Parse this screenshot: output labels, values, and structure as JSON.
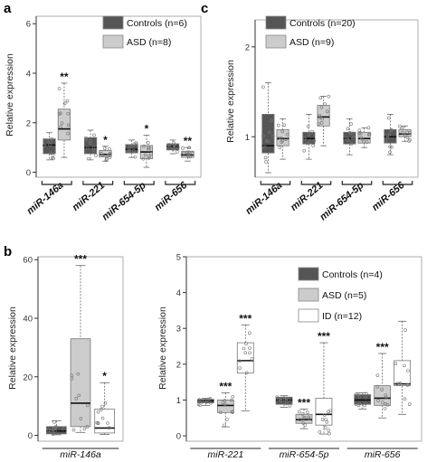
{
  "colors": {
    "controls": "#555555",
    "asd": "#cccccc",
    "id": "#ffffff",
    "points": "#777777",
    "axis": "#333333"
  },
  "chart_data": [
    {
      "panel_label": "a",
      "type": "box",
      "ylabel": "Relative expression",
      "ylim": [
        -0.2,
        6.3
      ],
      "yticks": [
        0,
        2,
        4,
        6
      ],
      "categories": [
        "miR-146a",
        "miR-221",
        "miR-654-5p",
        "miR-656"
      ],
      "legend": [
        {
          "group": "controls",
          "label": "Controls (n=6)"
        },
        {
          "group": "asd",
          "label": "ASD (n=8)"
        }
      ],
      "series": [
        {
          "group": "controls",
          "boxes": [
            {
              "min": 0.5,
              "q1": 0.75,
              "median": 1.1,
              "q3": 1.35,
              "max": 1.6
            },
            {
              "min": 0.5,
              "q1": 0.75,
              "median": 1.0,
              "q3": 1.4,
              "max": 1.7
            },
            {
              "min": 0.6,
              "q1": 0.78,
              "median": 0.92,
              "q3": 1.12,
              "max": 1.3
            },
            {
              "min": 0.75,
              "q1": 0.9,
              "median": 1.05,
              "q3": 1.15,
              "max": 1.3
            }
          ]
        },
        {
          "group": "asd",
          "boxes": [
            {
              "min": 0.6,
              "q1": 1.3,
              "median": 1.75,
              "q3": 2.55,
              "max": 3.6
            },
            {
              "min": 0.45,
              "q1": 0.62,
              "median": 0.72,
              "q3": 0.88,
              "max": 1.05
            },
            {
              "min": 0.2,
              "q1": 0.55,
              "median": 0.82,
              "q3": 1.08,
              "max": 1.5
            },
            {
              "min": 0.45,
              "q1": 0.6,
              "median": 0.7,
              "q3": 0.85,
              "max": 1.0
            }
          ]
        }
      ],
      "significance": [
        "**",
        "*",
        "*",
        "**"
      ]
    },
    {
      "panel_label": "c",
      "type": "box",
      "ylabel": "Relative expression",
      "ylim": [
        0.55,
        2.3
      ],
      "yticks": [
        1,
        2
      ],
      "categories": [
        "miR-146a",
        "miR-221",
        "miR-654-5p",
        "miR-656"
      ],
      "legend": [
        {
          "group": "controls",
          "label": "Controls (n=20)"
        },
        {
          "group": "asd",
          "label": "ASD (n=9)"
        }
      ],
      "series": [
        {
          "group": "controls",
          "boxes": [
            {
              "min": 0.6,
              "q1": 0.82,
              "median": 0.9,
              "q3": 1.25,
              "max": 1.6
            },
            {
              "min": 0.75,
              "q1": 0.92,
              "median": 0.98,
              "q3": 1.05,
              "max": 1.25
            },
            {
              "min": 0.8,
              "q1": 0.92,
              "median": 0.98,
              "q3": 1.05,
              "max": 1.2
            },
            {
              "min": 0.8,
              "q1": 0.93,
              "median": 1.0,
              "q3": 1.08,
              "max": 1.25
            }
          ]
        },
        {
          "group": "asd",
          "boxes": [
            {
              "min": 0.75,
              "q1": 0.9,
              "median": 0.98,
              "q3": 1.08,
              "max": 1.2
            },
            {
              "min": 0.9,
              "q1": 1.12,
              "median": 1.22,
              "q3": 1.35,
              "max": 1.45
            },
            {
              "min": 0.88,
              "q1": 0.93,
              "median": 0.98,
              "q3": 1.05,
              "max": 1.1
            },
            {
              "min": 0.95,
              "q1": 1.0,
              "median": 1.03,
              "q3": 1.08,
              "max": 1.12
            }
          ]
        }
      ],
      "significance": [
        "",
        "",
        "",
        ""
      ]
    },
    {
      "panel_label": "b",
      "type": "box",
      "ylabel": "Relative expression",
      "ylim": [
        -2,
        61
      ],
      "yticks": [
        0,
        20,
        40,
        60
      ],
      "categories": [
        "miR-146a"
      ],
      "series": [
        {
          "group": "controls",
          "boxes": [
            {
              "min": 0.2,
              "q1": 0.5,
              "median": 1.5,
              "q3": 3.0,
              "max": 5.0
            }
          ]
        },
        {
          "group": "asd",
          "boxes": [
            {
              "min": 1.0,
              "q1": 3.0,
              "median": 11.0,
              "q3": 33.0,
              "max": 58.0
            }
          ]
        },
        {
          "group": "id",
          "boxes": [
            {
              "min": 0.3,
              "q1": 0.8,
              "median": 2.5,
              "q3": 9.0,
              "max": 18.0
            }
          ]
        }
      ],
      "significance": [
        "***",
        "*"
      ]
    },
    {
      "type": "box",
      "ylabel": "Relative expression",
      "ylim": [
        -0.15,
        5.0
      ],
      "yticks": [
        0,
        1,
        2,
        3,
        4,
        5
      ],
      "categories": [
        "miR-221",
        "miR-654-5p",
        "miR-656"
      ],
      "legend": [
        {
          "group": "controls",
          "label": "Controls (n=4)"
        },
        {
          "group": "asd",
          "label": "ASD (n=5)"
        },
        {
          "group": "id",
          "label": "ID (n=12)"
        }
      ],
      "series": [
        {
          "group": "controls",
          "boxes": [
            {
              "min": 0.85,
              "q1": 0.92,
              "median": 0.98,
              "q3": 1.02,
              "max": 1.05
            },
            {
              "min": 0.8,
              "q1": 0.88,
              "median": 1.0,
              "q3": 1.08,
              "max": 1.12
            },
            {
              "min": 0.75,
              "q1": 0.88,
              "median": 1.0,
              "q3": 1.15,
              "max": 1.2
            }
          ]
        },
        {
          "group": "asd",
          "boxes": [
            {
              "min": 0.25,
              "q1": 0.65,
              "median": 0.85,
              "q3": 1.0,
              "max": 1.2
            },
            {
              "min": 0.2,
              "q1": 0.35,
              "median": 0.45,
              "q3": 0.6,
              "max": 0.75
            },
            {
              "min": 0.5,
              "q1": 0.85,
              "median": 1.05,
              "q3": 1.4,
              "max": 2.3
            }
          ]
        },
        {
          "group": "id",
          "boxes": [
            {
              "min": 0.7,
              "q1": 1.75,
              "median": 2.1,
              "q3": 2.6,
              "max": 3.1
            },
            {
              "min": 0.05,
              "q1": 0.3,
              "median": 0.6,
              "q3": 1.05,
              "max": 2.6
            },
            {
              "min": 0.6,
              "q1": 1.4,
              "median": 1.45,
              "q3": 2.1,
              "max": 3.2
            }
          ]
        }
      ],
      "significance": [
        "***",
        "***",
        "***",
        "***",
        "***",
        ""
      ]
    }
  ]
}
